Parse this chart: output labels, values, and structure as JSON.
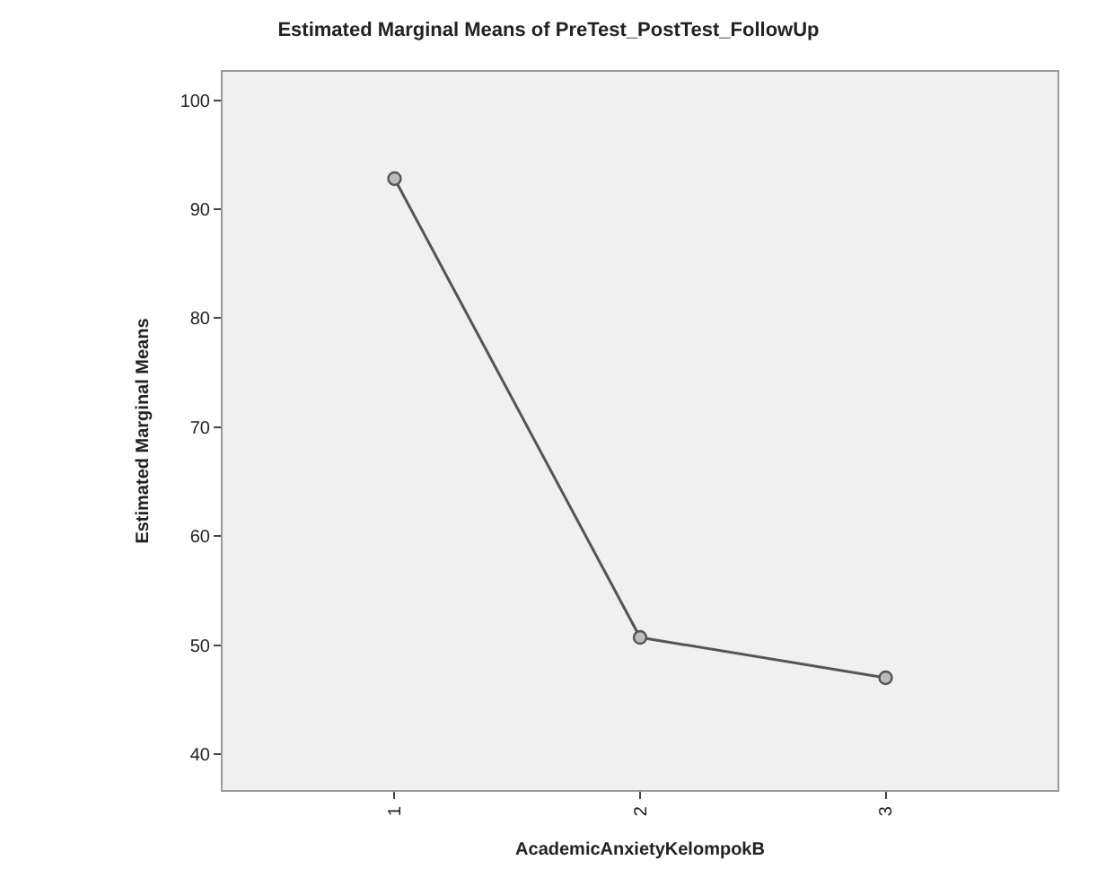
{
  "chart_data": {
    "type": "line",
    "title": "Estimated Marginal Means of PreTest_PostTest_FollowUp",
    "xlabel": "AcademicAnxietyKelompokB",
    "ylabel": "Estimated Marginal Means",
    "categories": [
      "1",
      "2",
      "3"
    ],
    "series": [
      {
        "color": "#555555",
        "values": [
          92.8,
          50.7,
          47.0
        ]
      }
    ],
    "ylim": [
      36.7,
      102.6
    ],
    "yticks": [
      40,
      50,
      60,
      70,
      80,
      90,
      100
    ],
    "grid": false,
    "marker": "circle",
    "line_style": "solid"
  }
}
